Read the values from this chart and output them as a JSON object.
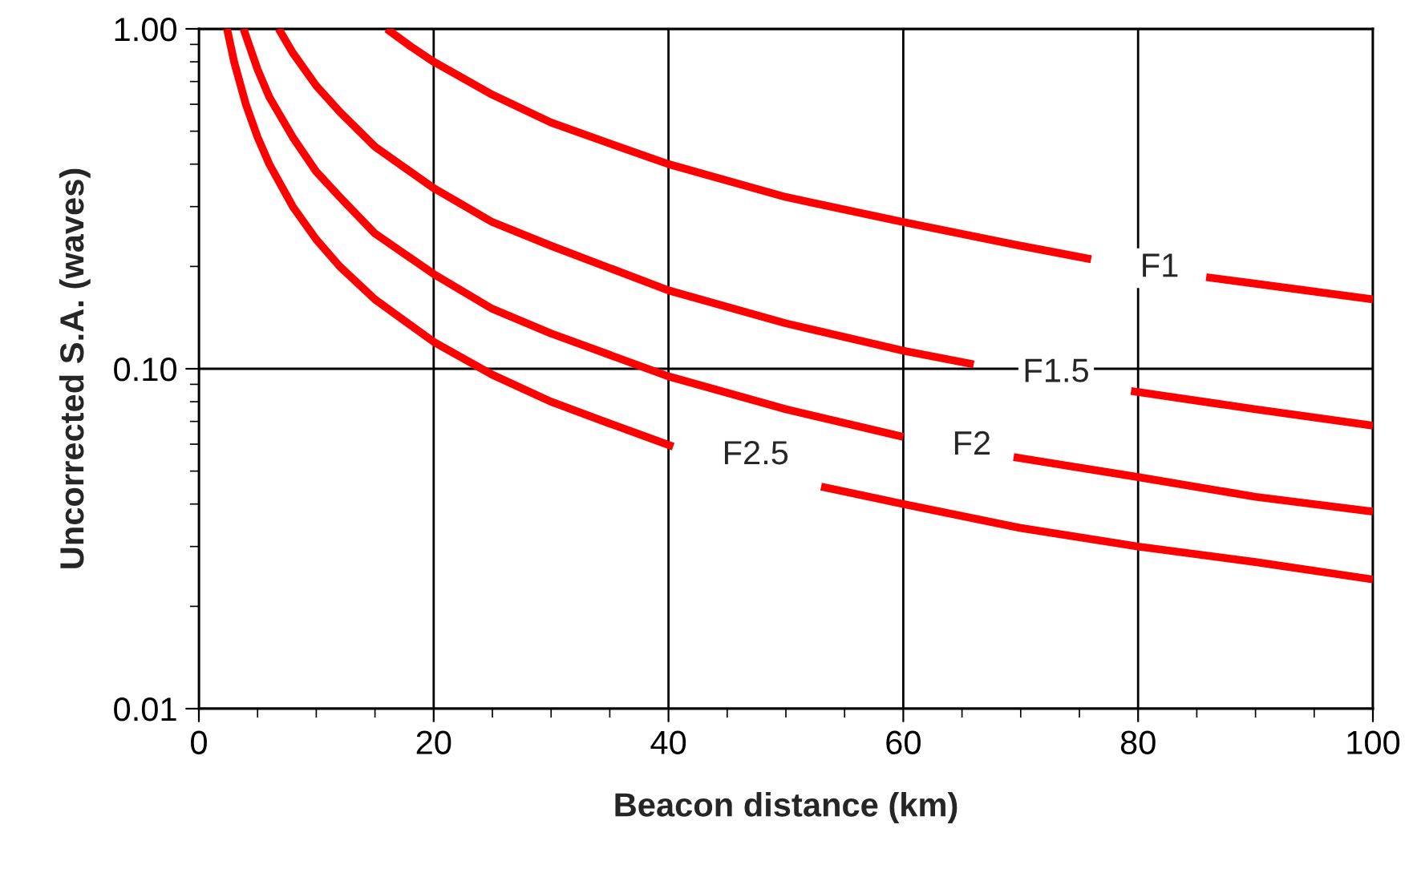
{
  "chart_data": {
    "type": "line",
    "xlabel": "Beacon distance (km)",
    "ylabel": "Uncorrected S.A. (waves)",
    "log": "y",
    "grid": true,
    "line_style": "solid",
    "marker": "none",
    "xlim": [
      0,
      100
    ],
    "xticks": [
      0,
      {
        "value": 5,
        "label": null
      },
      {
        "value": 10,
        "label": null
      },
      {
        "value": 15,
        "label": null
      },
      20,
      {
        "value": 25,
        "label": null
      },
      {
        "value": 30,
        "label": null
      },
      {
        "value": 35,
        "label": null
      },
      40,
      {
        "value": 45,
        "label": null
      },
      {
        "value": 50,
        "label": null
      },
      {
        "value": 55,
        "label": null
      },
      60,
      {
        "value": 65,
        "label": null
      },
      {
        "value": 70,
        "label": null
      },
      {
        "value": 75,
        "label": null
      },
      80,
      {
        "value": 85,
        "label": null
      },
      {
        "value": 90,
        "label": null
      },
      {
        "value": 95,
        "label": null
      },
      100
    ],
    "ylim": [
      0.01,
      1.0
    ],
    "yticks": [
      {
        "value": 0.01,
        "label": "0.01"
      },
      {
        "value": 0.1,
        "label": "0.10"
      },
      {
        "value": 1.0,
        "label": "1.00"
      }
    ],
    "series": [
      {
        "color": "#ff0000",
        "x": [
          16,
          18,
          20,
          25,
          30,
          35,
          40,
          50,
          60,
          70,
          76,
          80,
          85.8,
          90,
          100
        ],
        "values": [
          1.0,
          0.89,
          0.8,
          0.64,
          0.53,
          0.46,
          0.4,
          0.32,
          0.27,
          0.23,
          0.21,
          null,
          0.186,
          0.178,
          0.16
        ]
      },
      {
        "color": "#ff0000",
        "x": [
          6.8,
          8,
          10,
          12,
          15,
          20,
          25,
          30,
          40,
          50,
          60,
          66,
          72,
          79.4,
          90,
          100
        ],
        "values": [
          1.0,
          0.85,
          0.68,
          0.57,
          0.45,
          0.34,
          0.27,
          0.23,
          0.17,
          0.136,
          0.113,
          0.103,
          null,
          0.086,
          0.076,
          0.068
        ]
      },
      {
        "color": "#ff0000",
        "x": [
          3.8,
          5,
          6,
          8,
          10,
          12,
          15,
          20,
          25,
          30,
          40,
          50,
          60,
          65,
          69.4,
          80,
          90,
          100
        ],
        "values": [
          1.0,
          0.76,
          0.63,
          0.48,
          0.38,
          0.32,
          0.25,
          0.19,
          0.15,
          0.127,
          0.095,
          0.076,
          0.063,
          null,
          0.055,
          0.048,
          0.042,
          0.038
        ]
      },
      {
        "color": "#ff0000",
        "x": [
          2.4,
          3,
          4,
          5,
          6,
          8,
          10,
          12,
          15,
          20,
          25,
          30,
          35,
          40.4,
          47,
          53,
          60,
          70,
          80,
          90,
          100
        ],
        "values": [
          1.0,
          0.8,
          0.6,
          0.48,
          0.4,
          0.3,
          0.24,
          0.2,
          0.16,
          0.12,
          0.096,
          0.08,
          0.069,
          0.059,
          null,
          0.045,
          0.04,
          0.034,
          0.03,
          0.027,
          0.024
        ]
      }
    ],
    "annotations": [
      {
        "text": "F1",
        "x": 76,
        "y": 0.21
      },
      {
        "text": "F1.5",
        "x": 66,
        "y": 0.103
      },
      {
        "text": "F2",
        "x": 60,
        "y": 0.063
      },
      {
        "text": "F2.5",
        "x": 40.4,
        "y": 0.059
      }
    ]
  }
}
